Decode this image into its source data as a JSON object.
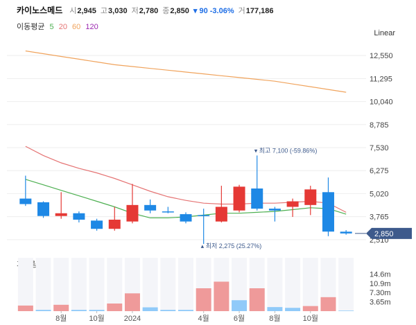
{
  "header": {
    "name": "카이노스메드",
    "open_label": "시",
    "open": "2,945",
    "high_label": "고",
    "high": "3,030",
    "low_label": "저",
    "low": "2,780",
    "close_label": "종",
    "close": "2,850",
    "change": "▾ 90 -3.06%",
    "volume_label": "거",
    "volume": "177,186"
  },
  "ma_legend": {
    "title": "이동평균",
    "items": [
      {
        "label": "5",
        "color": "#4caf50"
      },
      {
        "label": "20",
        "color": "#e57373"
      },
      {
        "label": "60",
        "color": "#f0a35c"
      },
      {
        "label": "120",
        "color": "#9c27b0"
      }
    ]
  },
  "scale_button": "Linear",
  "colors": {
    "up": "#e53935",
    "down": "#1e88e5",
    "up_vol": "#ef9a9a",
    "down_vol": "#90caf9",
    "current_price_bg": "#3d5a8c"
  },
  "chart_data": {
    "type": "candlestick",
    "price_ticks": [
      12550,
      11295,
      10040,
      8785,
      7530,
      6275,
      5020,
      3765,
      2510
    ],
    "price_tick_labels": [
      "12,550",
      "11,295",
      "10,040",
      "8,785",
      "7,530",
      "6,275",
      "5,020",
      "3,765",
      "2,510"
    ],
    "ylim": [
      1900,
      13500
    ],
    "current_price": 2850,
    "current_price_label": "2,850",
    "high_annotation": "▾ 최고 7,100 (-59.86%)",
    "low_annotation": "▴ 최저 2,275 (25.27%)",
    "x_labels": [
      {
        "index": 2,
        "label": "8월"
      },
      {
        "index": 4,
        "label": "10월"
      },
      {
        "index": 6,
        "label": "2024"
      },
      {
        "index": 10,
        "label": "4월"
      },
      {
        "index": 12,
        "label": "6월"
      },
      {
        "index": 14,
        "label": "8월"
      },
      {
        "index": 16,
        "label": "10월"
      }
    ],
    "candles": [
      {
        "o": 4750,
        "h": 6000,
        "l": 4350,
        "c": 4450
      },
      {
        "o": 4550,
        "h": 4600,
        "l": 3700,
        "c": 3800
      },
      {
        "o": 3800,
        "h": 5100,
        "l": 3650,
        "c": 3950
      },
      {
        "o": 3950,
        "h": 4050,
        "l": 3450,
        "c": 3600
      },
      {
        "o": 3550,
        "h": 3650,
        "l": 3000,
        "c": 3100
      },
      {
        "o": 3100,
        "h": 4300,
        "l": 3000,
        "c": 3600
      },
      {
        "o": 3500,
        "h": 5550,
        "l": 3400,
        "c": 4400
      },
      {
        "o": 4400,
        "h": 4700,
        "l": 3950,
        "c": 4100
      },
      {
        "o": 4050,
        "h": 4300,
        "l": 3950,
        "c": 4000
      },
      {
        "o": 3900,
        "h": 4000,
        "l": 3400,
        "c": 3500
      },
      {
        "o": 3850,
        "h": 4200,
        "l": 2275,
        "c": 3800
      },
      {
        "o": 3500,
        "h": 5450,
        "l": 3450,
        "c": 4300
      },
      {
        "o": 4100,
        "h": 5500,
        "l": 4000,
        "c": 5400
      },
      {
        "o": 5300,
        "h": 7100,
        "l": 4100,
        "c": 4200
      },
      {
        "o": 4200,
        "h": 4300,
        "l": 3500,
        "c": 4100
      },
      {
        "o": 4300,
        "h": 4750,
        "l": 3750,
        "c": 4600
      },
      {
        "o": 4400,
        "h": 5450,
        "l": 3850,
        "c": 5250
      },
      {
        "o": 5100,
        "h": 5900,
        "l": 2700,
        "c": 2950
      },
      {
        "o": 2945,
        "h": 3030,
        "l": 2780,
        "c": 2850
      }
    ],
    "ma": [
      {
        "name": "5",
        "color": "#4caf50",
        "values": [
          5800,
          5500,
          5200,
          4900,
          4600,
          4300,
          3950,
          3700,
          3700,
          3750,
          3850,
          3950,
          3950,
          4000,
          4050,
          4150,
          4250,
          4200,
          3900
        ]
      },
      {
        "name": "20",
        "color": "#e57373",
        "values": [
          7600,
          7100,
          6700,
          6400,
          6150,
          5850,
          5500,
          5150,
          4850,
          4650,
          4500,
          4450,
          4450,
          4500,
          4500,
          4550,
          4600,
          4500,
          4000
        ]
      },
      {
        "name": "60",
        "color": "#f0a35c",
        "values": [
          12800,
          12650,
          12500,
          12350,
          12200,
          12050,
          11950,
          11850,
          11750,
          11650,
          11550,
          11450,
          11350,
          11250,
          11150,
          11000,
          10850,
          10700,
          10550
        ]
      }
    ],
    "volume_label": "거래량",
    "volume_ticks": [
      14.6,
      10.9,
      7.3,
      3.65
    ],
    "volume_tick_labels": [
      "14.6m",
      "10.9m",
      "7.30m",
      "3.65m"
    ],
    "volume_max": 21,
    "volumes": [
      2.2,
      0.5,
      2.5,
      0.5,
      0.5,
      3.0,
      7.0,
      1.5,
      0.5,
      0.5,
      9.0,
      11.6,
      4.3,
      9.0,
      1.6,
      1.3,
      2.0,
      5.5,
      0.2
    ],
    "volume_up": [
      true,
      false,
      true,
      false,
      false,
      true,
      true,
      false,
      false,
      false,
      true,
      true,
      false,
      true,
      false,
      false,
      true,
      true,
      false
    ]
  }
}
